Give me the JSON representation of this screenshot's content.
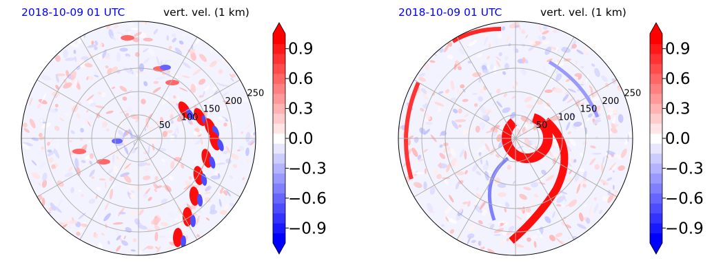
{
  "chart_data": [
    {
      "type": "heatmap",
      "projection": "polar",
      "date_label": "2018-10-09 01 UTC",
      "variable_label": "vert. vel. (1 km)",
      "ring_labels": [
        "50",
        "100",
        "150",
        "200",
        "250"
      ],
      "colorbar": {
        "vmin": -1.05,
        "vmax": 1.05,
        "step": 0.1,
        "ticks": [
          0.9,
          0.6,
          0.3,
          0.0,
          -0.3,
          -0.6,
          -0.9
        ],
        "tick_labels": [
          "0.9",
          "0.6",
          "0.3",
          "0.0",
          "−0.3",
          "−0.6",
          "−0.9"
        ],
        "extend": "both",
        "colormap": "bwr"
      },
      "grid": true
    },
    {
      "type": "heatmap",
      "projection": "polar",
      "date_label": "2018-10-09 01 UTC",
      "variable_label": "vert. vel. (1 km)",
      "ring_labels": [
        "50",
        "100",
        "150",
        "200",
        "250"
      ],
      "colorbar": {
        "vmin": -1.05,
        "vmax": 1.05,
        "step": 0.1,
        "ticks": [
          0.9,
          0.6,
          0.3,
          0.0,
          -0.3,
          -0.6,
          -0.9
        ],
        "tick_labels": [
          "0.9",
          "0.6",
          "0.3",
          "0.0",
          "−0.3",
          "−0.6",
          "−0.9"
        ],
        "extend": "both",
        "colormap": "bwr"
      },
      "grid": true
    }
  ],
  "colors": {
    "positive": "#ff0000",
    "negative": "#0000ff",
    "neutral": "#ffffff",
    "date_text": "#0000ff"
  }
}
